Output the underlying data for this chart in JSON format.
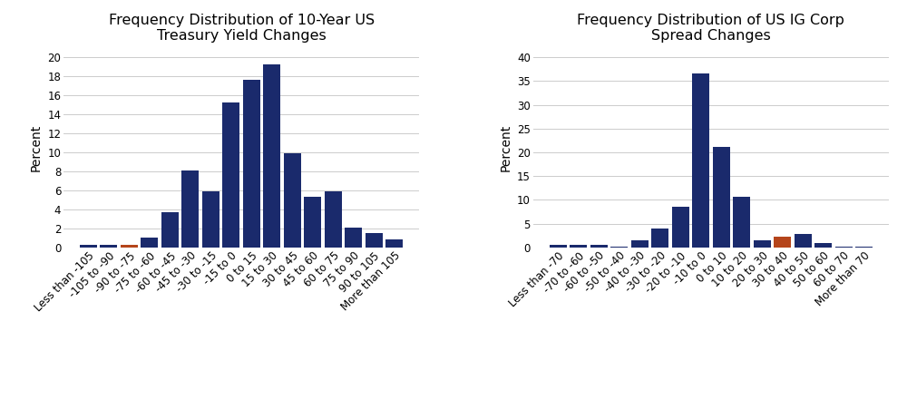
{
  "chart1": {
    "title": "Frequency Distribution of 10-Year US\nTreasury Yield Changes",
    "ylabel": "Percent",
    "ylim": [
      0,
      21
    ],
    "yticks": [
      0,
      2,
      4,
      6,
      8,
      10,
      12,
      14,
      16,
      18,
      20
    ],
    "categories": [
      "Less than -105",
      "-105 to -90",
      "-90 to -75",
      "-75 to -60",
      "-60 to -45",
      "-45 to -30",
      "-30 to -15",
      "-15 to 0",
      "0 to 15",
      "15 to 30",
      "30 to 45",
      "45 to 60",
      "60 to 75",
      "75 to 90",
      "90 to 105",
      "More than 105"
    ],
    "values": [
      0.3,
      0.3,
      0.3,
      1.0,
      3.7,
      8.1,
      5.9,
      15.3,
      17.6,
      19.3,
      9.9,
      5.3,
      5.9,
      2.1,
      1.5,
      0.8
    ],
    "bar_colors": [
      "#1a2a6c",
      "#1a2a6c",
      "#b5451b",
      "#1a2a6c",
      "#1a2a6c",
      "#1a2a6c",
      "#1a2a6c",
      "#1a2a6c",
      "#1a2a6c",
      "#1a2a6c",
      "#1a2a6c",
      "#1a2a6c",
      "#1a2a6c",
      "#1a2a6c",
      "#1a2a6c",
      "#1a2a6c"
    ]
  },
  "chart2": {
    "title": "Frequency Distribution of US IG Corp\nSpread Changes",
    "ylabel": "Percent",
    "ylim": [
      0,
      42
    ],
    "yticks": [
      0,
      5,
      10,
      15,
      20,
      25,
      30,
      35,
      40
    ],
    "categories": [
      "Less than -70",
      "-70 to -60",
      "-60 to -50",
      "-50 to -40",
      "-40 to -30",
      "-30 to -20",
      "-20 to -10",
      "-10 to 0",
      "0 to 10",
      "10 to 20",
      "20 to 30",
      "30 to 40",
      "40 to 50",
      "50 to 60",
      "60 to 70",
      "More than 70"
    ],
    "values": [
      0.6,
      0.6,
      0.6,
      0.2,
      1.5,
      4.0,
      8.5,
      36.7,
      21.1,
      10.6,
      1.5,
      2.2,
      2.8,
      0.9,
      0.2,
      0.2
    ],
    "bar_colors": [
      "#1a2a6c",
      "#1a2a6c",
      "#1a2a6c",
      "#1a2a6c",
      "#1a2a6c",
      "#1a2a6c",
      "#1a2a6c",
      "#1a2a6c",
      "#1a2a6c",
      "#1a2a6c",
      "#1a2a6c",
      "#b5451b",
      "#1a2a6c",
      "#1a2a6c",
      "#1a2a6c",
      "#1a2a6c"
    ]
  },
  "background_color": "#ffffff",
  "title_fontsize": 11.5,
  "label_fontsize": 10,
  "tick_fontsize": 8.5,
  "bar_width": 0.85
}
